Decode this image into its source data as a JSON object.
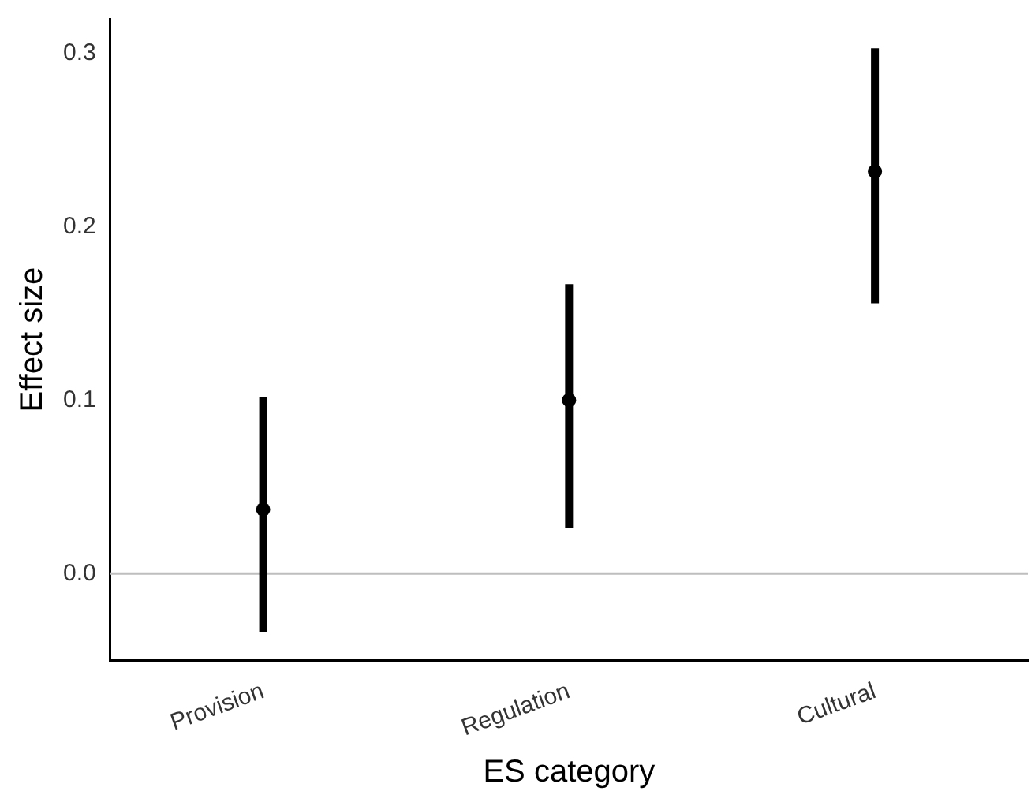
{
  "chart_data": {
    "type": "scatter",
    "xlabel": "ES category",
    "ylabel": "Effect size",
    "categories": [
      "Provision",
      "Regulation",
      "Cultural"
    ],
    "series": [
      {
        "color": "#000000",
        "values": [
          0.037,
          0.1,
          0.232
        ],
        "errors": [
          [
            -0.034,
            0.102
          ],
          [
            0.026,
            0.167
          ],
          [
            0.156,
            0.303
          ]
        ]
      }
    ],
    "ylim": [
      -0.05,
      0.32
    ],
    "yticks": [
      {
        "value": 0,
        "label": "0.0"
      },
      {
        "value": 0.1,
        "label": "0.1"
      },
      {
        "value": 0.2,
        "label": "0.2"
      },
      {
        "value": 0.3,
        "label": "0.3"
      }
    ],
    "ref_lines": [
      {
        "axis": "y",
        "value": 0,
        "color": "#bebebe"
      }
    ],
    "grid": false,
    "legend": false,
    "marker": "circle"
  }
}
